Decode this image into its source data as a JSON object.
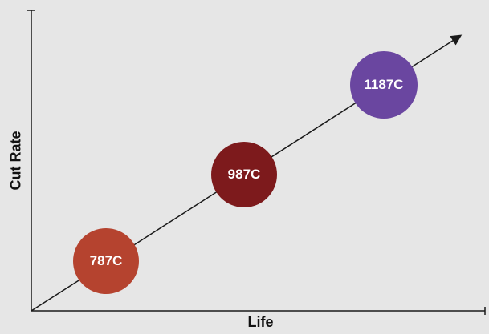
{
  "axes": {
    "x_title": "Life",
    "y_title": "Cut Rate"
  },
  "bubbles": [
    {
      "label": "787C",
      "color": "#b5432f"
    },
    {
      "label": "987C",
      "color": "#7d1a1c"
    },
    {
      "label": "1187C",
      "color": "#6a46a0"
    }
  ],
  "colors": {
    "background": "#e6e6e6",
    "axis": "#1a1a1a",
    "trend_line": "#1a1a1a"
  }
}
